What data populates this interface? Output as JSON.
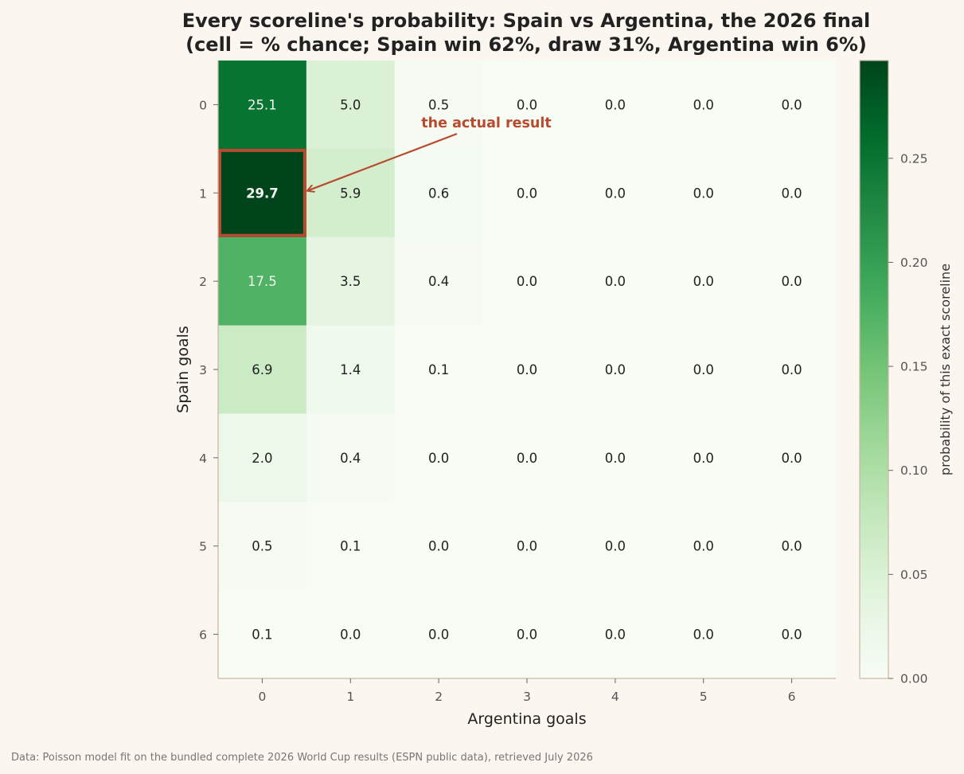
{
  "chart_data": {
    "type": "heatmap",
    "title_lines": [
      "Every scoreline's probability: Spain vs Argentina, the 2026 final",
      "(cell = % chance; Spain win 62%, draw 31%, Argentina win 6%)"
    ],
    "xlabel": "Argentina goals",
    "ylabel": "Spain goals",
    "x_categories": [
      "0",
      "1",
      "2",
      "3",
      "4",
      "5",
      "6"
    ],
    "y_categories": [
      "0",
      "1",
      "2",
      "3",
      "4",
      "5",
      "6"
    ],
    "values_pct": [
      [
        25.1,
        5.0,
        0.5,
        0.0,
        0.0,
        0.0,
        0.0
      ],
      [
        29.7,
        5.9,
        0.6,
        0.0,
        0.0,
        0.0,
        0.0
      ],
      [
        17.5,
        3.5,
        0.4,
        0.0,
        0.0,
        0.0,
        0.0
      ],
      [
        6.9,
        1.4,
        0.1,
        0.0,
        0.0,
        0.0,
        0.0
      ],
      [
        2.0,
        0.4,
        0.0,
        0.0,
        0.0,
        0.0,
        0.0
      ],
      [
        0.5,
        0.1,
        0.0,
        0.0,
        0.0,
        0.0,
        0.0
      ],
      [
        0.1,
        0.0,
        0.0,
        0.0,
        0.0,
        0.0,
        0.0
      ]
    ],
    "colormap": "Greens",
    "color_range": [
      0.0,
      0.297
    ],
    "colorbar": {
      "label": "probability of this exact scoreline",
      "ticks": [
        "0.00",
        "0.05",
        "0.10",
        "0.15",
        "0.20",
        "0.25"
      ]
    },
    "highlight": {
      "row": 1,
      "col": 0,
      "label": "the actual result",
      "color": "#b84a30"
    },
    "grid": false
  },
  "footer": {
    "source_text": "Data: Poisson model fit on the bundled complete 2026 World Cup results (ESPN public data), retrieved July 2026"
  },
  "colors": {
    "background": "#fbf6ef",
    "axis_spine": "#c8b9a4",
    "highlight": "#b84a30"
  }
}
